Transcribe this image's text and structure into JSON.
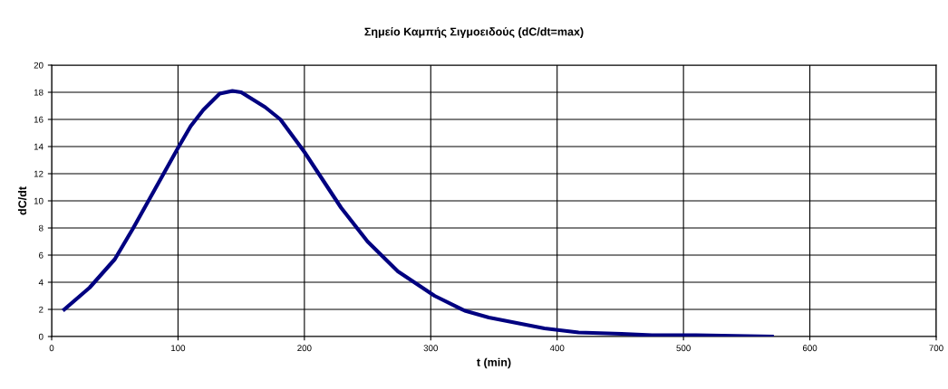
{
  "chart_data": {
    "type": "line",
    "title": "Σημείο Καμπής Σιγμοειδούς (dC/dt=max)",
    "xlabel": "t (min)",
    "ylabel": "dC/dt",
    "x": [
      10,
      30,
      50,
      64,
      76,
      100,
      110,
      120,
      133,
      143,
      150,
      169,
      181,
      200,
      229,
      250,
      274,
      303,
      327,
      346,
      390,
      417,
      451,
      475,
      510,
      570
    ],
    "series": [
      {
        "color": "#000080",
        "values": [
          2.0,
          3.6,
          5.7,
          7.9,
          9.9,
          13.9,
          15.5,
          16.7,
          17.9,
          18.1,
          18.0,
          16.9,
          16.0,
          13.6,
          9.5,
          7.0,
          4.8,
          3.0,
          1.9,
          1.4,
          0.6,
          0.3,
          0.2,
          0.1,
          0.1,
          0.0
        ]
      }
    ],
    "xlim": [
      0,
      700
    ],
    "xticks": [
      0,
      100,
      200,
      300,
      400,
      500,
      600,
      700
    ],
    "ylim": [
      0,
      20
    ],
    "yticks": [
      0,
      2,
      4,
      6,
      8,
      10,
      12,
      14,
      16,
      18,
      20
    ],
    "grid": true,
    "legend": false,
    "marker": "none",
    "line_style": "solid"
  }
}
